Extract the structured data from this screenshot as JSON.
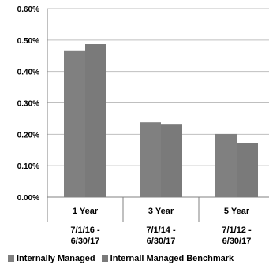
{
  "chart_data": {
    "type": "bar",
    "categories": [
      {
        "line1": "1 Year",
        "line2": "7/1/16 -",
        "line3": "6/30/17"
      },
      {
        "line1": "3 Year",
        "line2": "7/1/14 -",
        "line3": "6/30/17"
      },
      {
        "line1": "5 Year",
        "line2": "7/1/12 -",
        "line3": "6/30/17"
      }
    ],
    "series": [
      {
        "name": "Internally Managed",
        "color": "#808080",
        "values": [
          0.465,
          0.238,
          0.201
        ]
      },
      {
        "name": "Internall Managed Benchmark",
        "color": "#7a7a7a",
        "values": [
          0.487,
          0.233,
          0.173
        ]
      }
    ],
    "ylim": [
      0,
      0.6
    ],
    "yticks": [
      0.0,
      0.1,
      0.2,
      0.3,
      0.4,
      0.5,
      0.6
    ],
    "ytick_labels": [
      "0.00%",
      "0.10%",
      "0.20%",
      "0.30%",
      "0.40%",
      "0.50%",
      "0.60%"
    ],
    "grid": true,
    "legend": "bottom"
  }
}
